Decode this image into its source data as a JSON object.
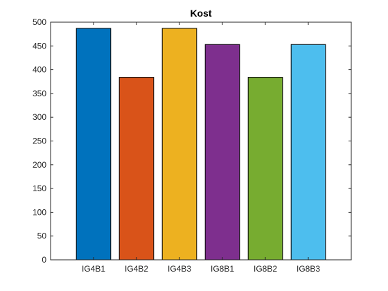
{
  "chart_data": {
    "type": "bar",
    "title": "Kost",
    "xlabel": "",
    "ylabel": "",
    "categories": [
      "IG4B1",
      "IG4B2",
      "IG4B3",
      "IG8B1",
      "IG8B2",
      "IG8B3"
    ],
    "values": [
      487,
      384,
      487,
      453,
      384,
      453
    ],
    "colors": [
      "#0072BD",
      "#D95319",
      "#EDB120",
      "#7E2F8E",
      "#77AC30",
      "#4DBEEE"
    ],
    "ylim": [
      0,
      500
    ],
    "yticks": [
      0,
      50,
      100,
      150,
      200,
      250,
      300,
      350,
      400,
      450,
      500
    ],
    "grid": false,
    "legend": "none"
  }
}
